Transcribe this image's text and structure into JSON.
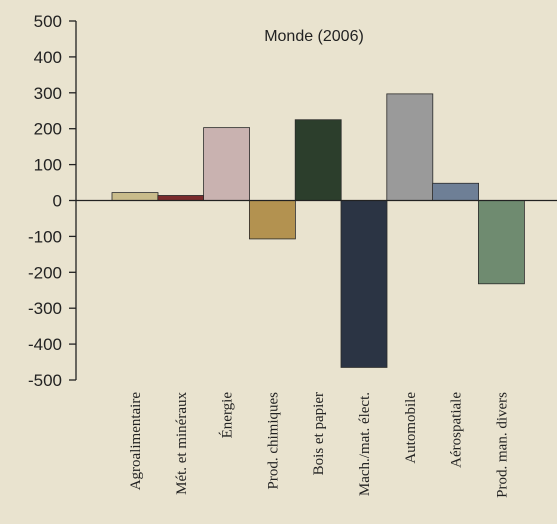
{
  "chart_data": {
    "type": "bar",
    "title": "Monde (2006)",
    "xlabel": "",
    "ylabel": "",
    "ylim": [
      -500,
      500
    ],
    "yticks": [
      500,
      400,
      300,
      200,
      100,
      0,
      -100,
      -200,
      -300,
      -400,
      -500
    ],
    "grid": false,
    "categories": [
      "Agroalimentaire",
      "Mét. et minéraux",
      "Énergie",
      "Prod. chimiques",
      "Bois et papier",
      "Mach./mat. élect.",
      "Automobile",
      "Aérospatiale",
      "Prod. man. divers"
    ],
    "values": [
      22,
      14,
      203,
      -107,
      225,
      -465,
      297,
      48,
      -232
    ],
    "colors": [
      "#c9bc8b",
      "#7a2b2c",
      "#c9b2b0",
      "#b39250",
      "#2c3e2c",
      "#2b3444",
      "#9a9a9a",
      "#6e7f96",
      "#6f8b70"
    ]
  }
}
